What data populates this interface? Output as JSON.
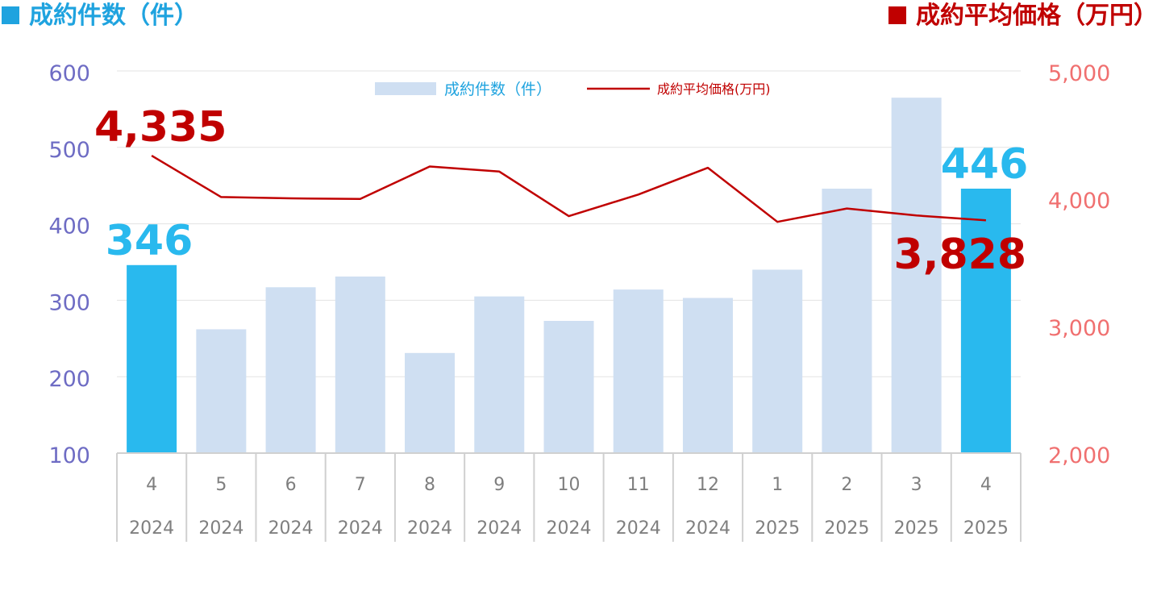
{
  "header": {
    "left_title": "成約件数（件）",
    "right_title": "成約平均価格（万円）",
    "left_color": "#1FA3DF",
    "right_color": "#C00000"
  },
  "legend": {
    "bar_label": "成約件数（件）",
    "line_label": "成約平均価格(万円)"
  },
  "chart_data": {
    "type": "bar",
    "title": "",
    "categories": [
      {
        "month": "4",
        "year": "2024"
      },
      {
        "month": "5",
        "year": "2024"
      },
      {
        "month": "6",
        "year": "2024"
      },
      {
        "month": "7",
        "year": "2024"
      },
      {
        "month": "8",
        "year": "2024"
      },
      {
        "month": "9",
        "year": "2024"
      },
      {
        "month": "10",
        "year": "2024"
      },
      {
        "month": "11",
        "year": "2024"
      },
      {
        "month": "12",
        "year": "2024"
      },
      {
        "month": "1",
        "year": "2025"
      },
      {
        "month": "2",
        "year": "2025"
      },
      {
        "month": "3",
        "year": "2025"
      },
      {
        "month": "4",
        "year": "2025"
      }
    ],
    "series": [
      {
        "name": "成約件数（件）",
        "type": "bar",
        "axis": "left",
        "color": "#CFDFF2",
        "highlight_color": "#29B9EE",
        "highlight_indices": [
          0,
          12
        ],
        "values": [
          346,
          262,
          317,
          331,
          231,
          305,
          273,
          314,
          303,
          340,
          446,
          565,
          446
        ]
      },
      {
        "name": "成約平均価格(万円)",
        "type": "line",
        "axis": "right",
        "color": "#C00000",
        "values": [
          4335,
          4010,
          4000,
          3995,
          4250,
          4210,
          3860,
          4030,
          4240,
          3815,
          3920,
          3865,
          3828
        ]
      }
    ],
    "y_left": {
      "min": 100,
      "max": 600,
      "ticks": [
        "600",
        "500",
        "400",
        "300",
        "200",
        "100"
      ],
      "color": "#6E6CC4"
    },
    "y_right": {
      "min": 2000,
      "max": 5000,
      "ticks": [
        "5,000",
        "4,000",
        "3,000",
        "2,000"
      ],
      "color": "#F07070"
    },
    "annotations": {
      "first_price": "4,335",
      "last_price": "3,828",
      "first_count": "346",
      "last_count": "446"
    },
    "grid": true,
    "legend_position": "top-center"
  }
}
